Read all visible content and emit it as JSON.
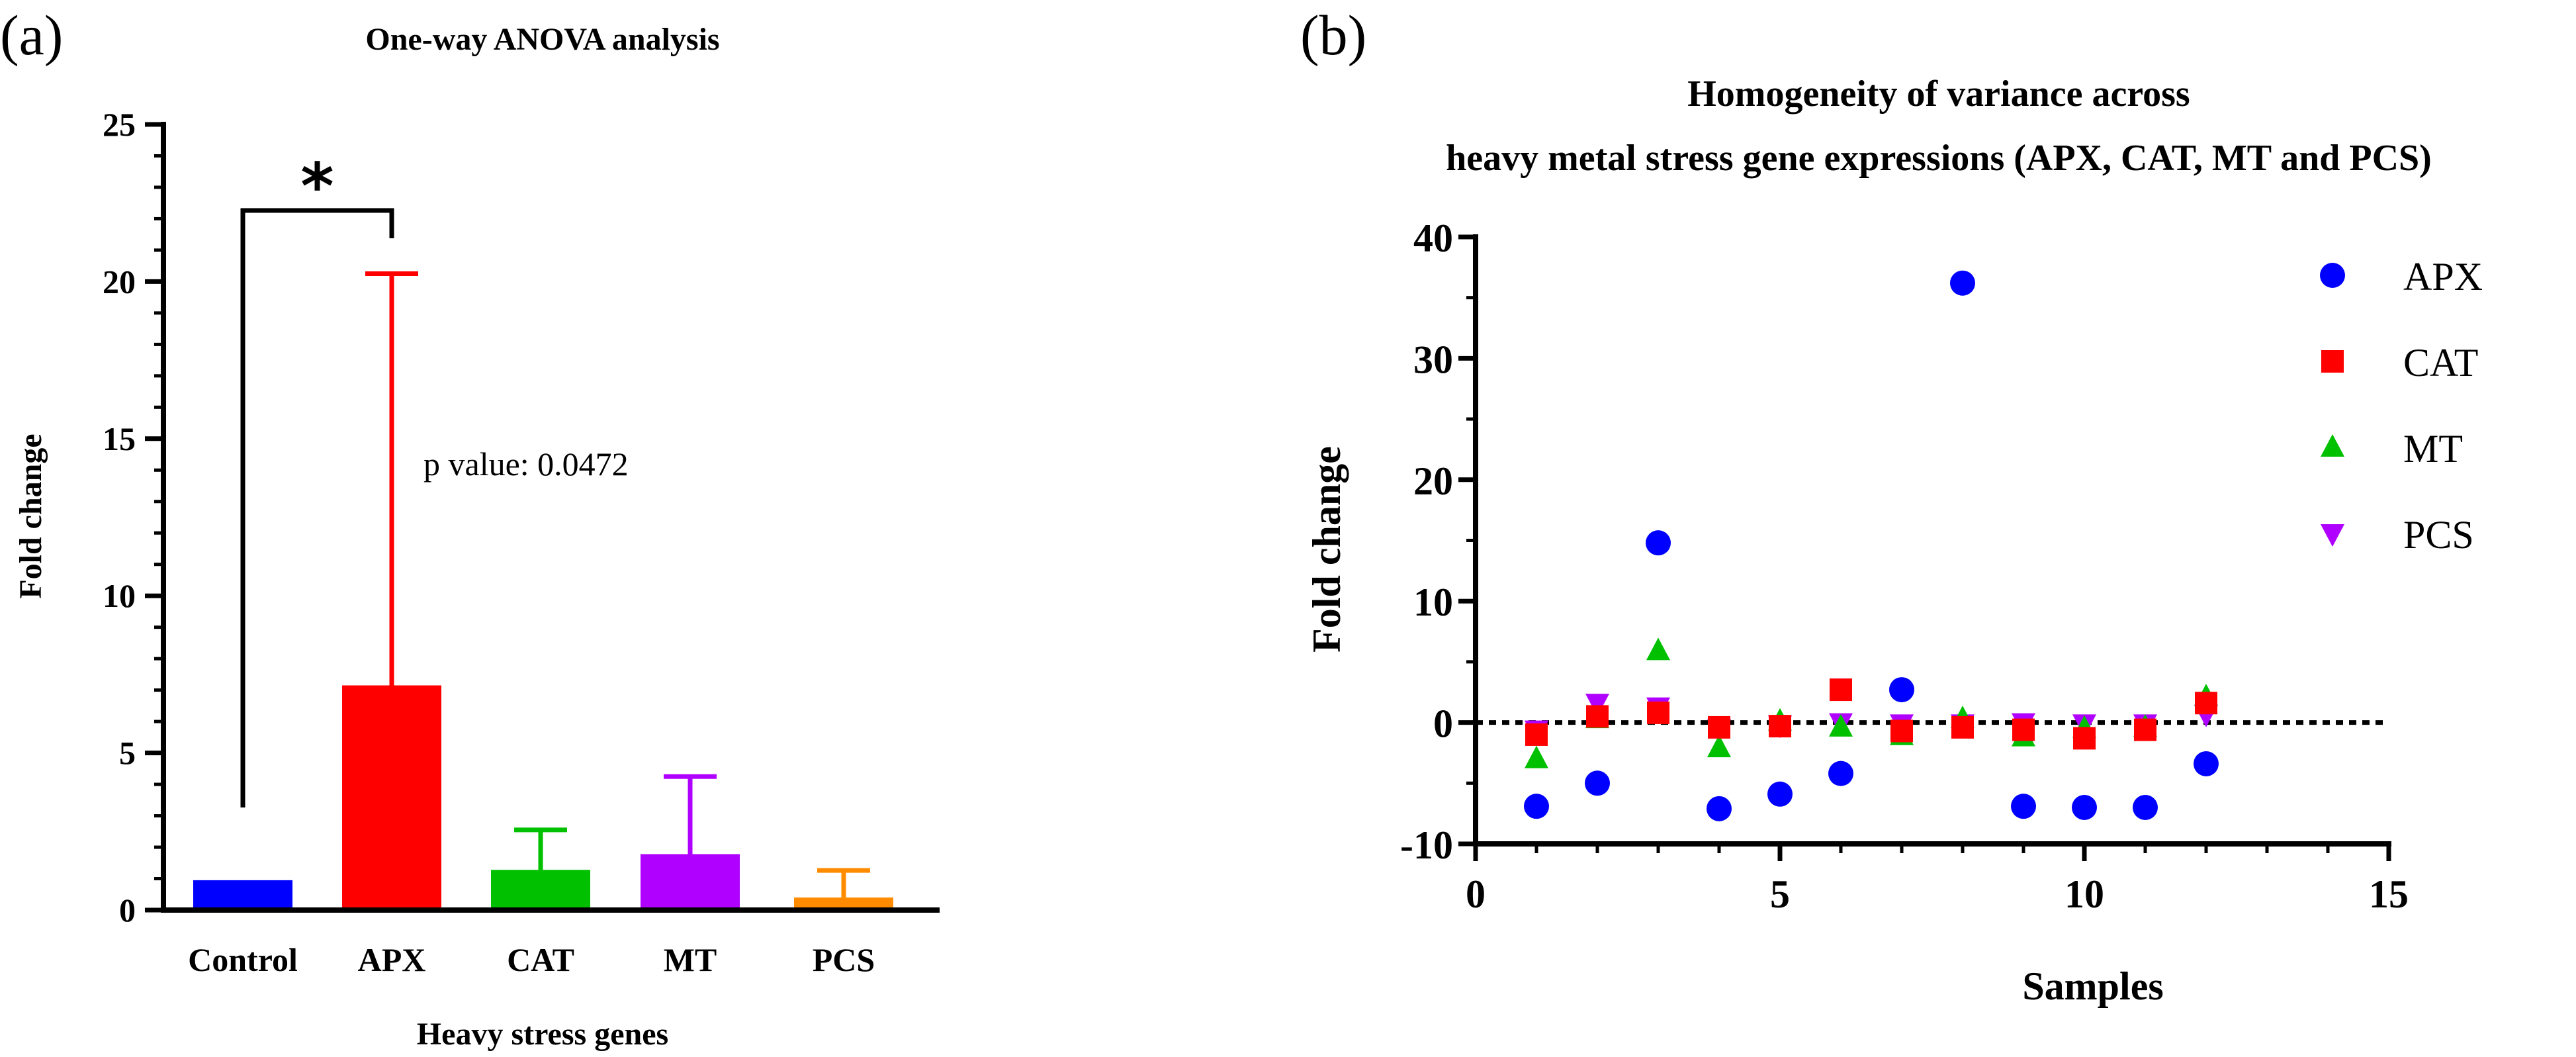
{
  "panels": {
    "a": {
      "label": "(a)"
    },
    "b": {
      "label": "(b)"
    }
  },
  "chart_data": [
    {
      "id": "a",
      "type": "bar",
      "title": "One-way ANOVA analysis",
      "xlabel": "Heavy stress genes",
      "ylabel": "Fold change",
      "ylim": [
        0,
        25
      ],
      "yticks": [
        0,
        5,
        10,
        15,
        20,
        25
      ],
      "categories": [
        "Control",
        "APX",
        "CAT",
        "MT",
        "PCS"
      ],
      "values": [
        0.95,
        7.15,
        1.28,
        1.78,
        0.4
      ],
      "errors": [
        0,
        13.1,
        1.27,
        2.47,
        0.86
      ],
      "colors": [
        "#0000ff",
        "#ff0000",
        "#00c000",
        "#b000ff",
        "#ff8c00"
      ],
      "significance": {
        "from": "Control",
        "to": "APX",
        "label": "*"
      },
      "annotation": "p value: 0.0472"
    },
    {
      "id": "b",
      "type": "scatter",
      "title_lines": [
        "Homogeneity of variance across",
        "heavy metal stress gene expressions (APX, CAT, MT and PCS)"
      ],
      "xlabel": "Samples",
      "ylabel": "Fold change",
      "xlim": [
        0,
        15
      ],
      "ylim": [
        -10,
        40
      ],
      "xticks": [
        0,
        5,
        10,
        15
      ],
      "yticks": [
        -10,
        0,
        10,
        20,
        30,
        40
      ],
      "reference_line": 0,
      "series": [
        {
          "name": "APX",
          "marker": "circle",
          "color": "#0000ff",
          "x": [
            1,
            2,
            3,
            4,
            5,
            6,
            7,
            8,
            9,
            10,
            11,
            12
          ],
          "y": [
            -6.9,
            -5.0,
            14.8,
            -7.1,
            -5.9,
            -4.2,
            2.7,
            36.2,
            -6.9,
            -7.0,
            -7.0,
            -3.4
          ]
        },
        {
          "name": "CAT",
          "marker": "square",
          "color": "#ff0000",
          "x": [
            1,
            2,
            3,
            4,
            5,
            6,
            7,
            8,
            9,
            10,
            11,
            12
          ],
          "y": [
            -1.0,
            0.5,
            0.8,
            -0.4,
            -0.3,
            2.7,
            -0.7,
            -0.4,
            -0.6,
            -1.3,
            -0.6,
            1.6
          ]
        },
        {
          "name": "MT",
          "marker": "triangle-up",
          "color": "#00c000",
          "x": [
            1,
            2,
            3,
            4,
            5,
            6,
            7,
            8,
            9,
            10,
            11,
            12
          ],
          "y": [
            -3.0,
            0.3,
            5.9,
            -2.1,
            0.1,
            -0.4,
            -1.1,
            0.3,
            -1.2,
            -0.5,
            -0.4,
            2.1
          ]
        },
        {
          "name": "PCS",
          "marker": "triangle-down",
          "color": "#b000ff",
          "x": [
            1,
            2,
            3,
            4,
            5,
            6,
            7,
            8,
            9,
            10,
            11,
            12
          ],
          "y": [
            -0.6,
            1.6,
            1.3,
            -0.5,
            -0.2,
            0.0,
            -0.1,
            -0.1,
            0.0,
            -0.1,
            -0.1,
            0.7
          ]
        }
      ]
    }
  ]
}
